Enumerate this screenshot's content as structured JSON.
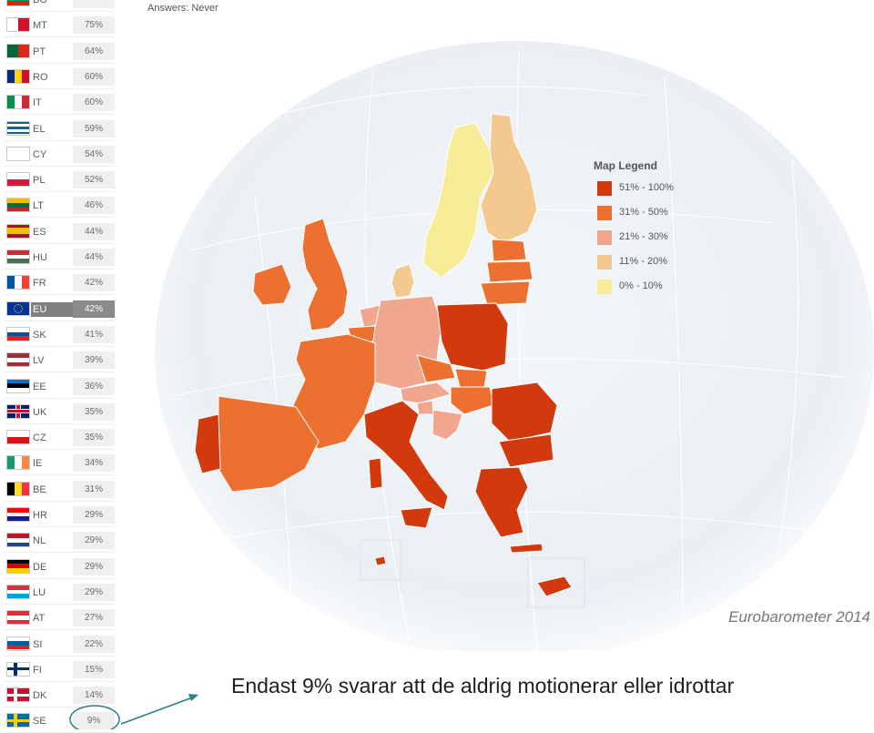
{
  "header": {
    "answers_label": "Answers:",
    "answers_value": "Never"
  },
  "countries": [
    {
      "code": "BG",
      "value": "",
      "flag": [
        "#ffffff",
        "#00966e",
        "#d62612"
      ],
      "dir": "h"
    },
    {
      "code": "MT",
      "value": "75%",
      "flag": [
        "#ffffff",
        "#cf142b"
      ],
      "dir": "v"
    },
    {
      "code": "PT",
      "value": "64%",
      "flag": [
        "#046a38",
        "#da291c"
      ],
      "dir": "v"
    },
    {
      "code": "RO",
      "value": "60%",
      "flag": [
        "#002b7f",
        "#fcd116",
        "#ce1126"
      ],
      "dir": "v"
    },
    {
      "code": "IT",
      "value": "60%",
      "flag": [
        "#009246",
        "#ffffff",
        "#ce2b37"
      ],
      "dir": "v"
    },
    {
      "code": "EL",
      "value": "59%",
      "flag": [
        "#0d5eaf",
        "#ffffff",
        "#0d5eaf",
        "#ffffff",
        "#0d5eaf"
      ],
      "dir": "h"
    },
    {
      "code": "CY",
      "value": "54%",
      "flag": [
        "#ffffff"
      ],
      "dir": "h"
    },
    {
      "code": "PL",
      "value": "52%",
      "flag": [
        "#ffffff",
        "#dc143c"
      ],
      "dir": "h"
    },
    {
      "code": "LT",
      "value": "46%",
      "flag": [
        "#fdb913",
        "#006a44",
        "#c1272d"
      ],
      "dir": "h"
    },
    {
      "code": "ES",
      "value": "44%",
      "flag": [
        "#aa151b",
        "#f1bf00",
        "#f1bf00",
        "#aa151b"
      ],
      "dir": "h"
    },
    {
      "code": "HU",
      "value": "44%",
      "flag": [
        "#ce2939",
        "#ffffff",
        "#477050"
      ],
      "dir": "h"
    },
    {
      "code": "FR",
      "value": "42%",
      "flag": [
        "#0055a4",
        "#ffffff",
        "#ef4135"
      ],
      "dir": "v"
    },
    {
      "code": "EU",
      "value": "42%",
      "flag": [
        "#003399"
      ],
      "dir": "h",
      "eu": true
    },
    {
      "code": "SK",
      "value": "41%",
      "flag": [
        "#ffffff",
        "#0b4ea2",
        "#ee1c25"
      ],
      "dir": "h"
    },
    {
      "code": "LV",
      "value": "39%",
      "flag": [
        "#9e3039",
        "#ffffff",
        "#9e3039"
      ],
      "dir": "h"
    },
    {
      "code": "EE",
      "value": "36%",
      "flag": [
        "#0072ce",
        "#000000",
        "#ffffff"
      ],
      "dir": "h"
    },
    {
      "code": "UK",
      "value": "35%",
      "flag": [
        "#012169"
      ],
      "dir": "h"
    },
    {
      "code": "CZ",
      "value": "35%",
      "flag": [
        "#ffffff",
        "#d7141a"
      ],
      "dir": "h"
    },
    {
      "code": "IE",
      "value": "34%",
      "flag": [
        "#169b62",
        "#ffffff",
        "#ff883e"
      ],
      "dir": "v"
    },
    {
      "code": "BE",
      "value": "31%",
      "flag": [
        "#000000",
        "#fdda24",
        "#ef3340"
      ],
      "dir": "v"
    },
    {
      "code": "HR",
      "value": "29%",
      "flag": [
        "#ff0000",
        "#ffffff",
        "#171796"
      ],
      "dir": "h"
    },
    {
      "code": "NL",
      "value": "29%",
      "flag": [
        "#ae1c28",
        "#ffffff",
        "#21468b"
      ],
      "dir": "h"
    },
    {
      "code": "DE",
      "value": "29%",
      "flag": [
        "#000000",
        "#dd0000",
        "#ffce00"
      ],
      "dir": "h"
    },
    {
      "code": "LU",
      "value": "29%",
      "flag": [
        "#ed2939",
        "#ffffff",
        "#00a1de"
      ],
      "dir": "h"
    },
    {
      "code": "AT",
      "value": "27%",
      "flag": [
        "#ed2939",
        "#ffffff",
        "#ed2939"
      ],
      "dir": "h"
    },
    {
      "code": "SI",
      "value": "22%",
      "flag": [
        "#ffffff",
        "#005da4",
        "#ed1c24"
      ],
      "dir": "h"
    },
    {
      "code": "FI",
      "value": "15%",
      "flag": [
        "#ffffff"
      ],
      "dir": "h"
    },
    {
      "code": "DK",
      "value": "14%",
      "flag": [
        "#c8102e"
      ],
      "dir": "h"
    },
    {
      "code": "SE",
      "value": "9%",
      "flag": [
        "#006aa7"
      ],
      "dir": "h"
    }
  ],
  "legend": {
    "title": "Map Legend",
    "items": [
      {
        "label": "51% - 100%",
        "color": "#d2390d"
      },
      {
        "label": "31% - 50%",
        "color": "#ec7130"
      },
      {
        "label": "21% - 30%",
        "color": "#f1a690"
      },
      {
        "label": "11% - 20%",
        "color": "#f4c98f"
      },
      {
        "label": "0% - 10%",
        "color": "#f7ec97"
      }
    ]
  },
  "source": "Eurobarometer 2014",
  "caption": "Endast 9% svarar att de aldrig motionerar eller idrottar",
  "colors": {
    "dark": "#d2390d",
    "mid": "#ec7130",
    "light": "#f1a690",
    "pale": "#f4c98f",
    "yellow": "#f7ec97",
    "globe": "#eef2f6",
    "arrow": "#2a7f86"
  }
}
